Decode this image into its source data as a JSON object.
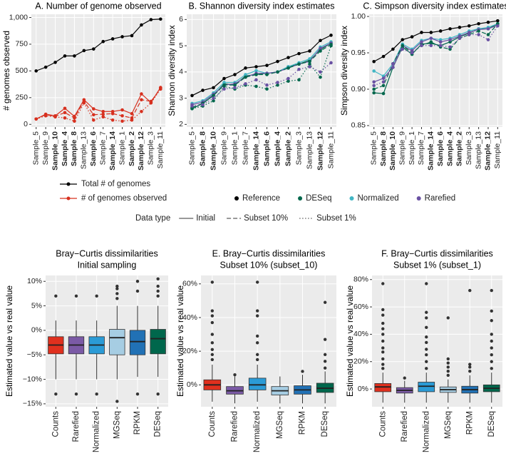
{
  "chart_data": [
    {
      "type": "line",
      "title": "A. Number of genome observed",
      "y_label": "# genomes observed",
      "categories": [
        "Sample_5",
        "Sample_9",
        "Sample_10",
        "Sample_4",
        "Sample_8",
        "Sample_13",
        "Sample_6",
        "Sample_7",
        "Sample_14",
        "Sample_1",
        "Sample_2",
        "Sample_12",
        "Sample_3",
        "Sample_11"
      ],
      "bold_labels": [
        false,
        false,
        true,
        true,
        true,
        false,
        true,
        false,
        true,
        false,
        true,
        true,
        false,
        false
      ],
      "ylim": [
        -25,
        1030
      ],
      "yticks": [
        0,
        250,
        500,
        750,
        {
          "value": 1000,
          "label": "1,000"
        }
      ],
      "grid": true,
      "points": true,
      "series": [
        {
          "color": "#000000",
          "dash": "solid",
          "values": [
            500,
            535,
            580,
            640,
            640,
            690,
            705,
            775,
            800,
            820,
            830,
            930,
            980,
            985
          ]
        },
        {
          "color": "#d7301f",
          "dash": "solid",
          "values": [
            50,
            95,
            80,
            150,
            75,
            230,
            145,
            120,
            120,
            135,
            100,
            285,
            205,
            345
          ]
        },
        {
          "color": "#d7301f",
          "dash": "dashed",
          "values": [
            50,
            90,
            75,
            110,
            60,
            215,
            90,
            95,
            100,
            80,
            60,
            230,
            215,
            335
          ]
        },
        {
          "color": "#d7301f",
          "dash": "dotted",
          "values": [
            50,
            80,
            70,
            60,
            30,
            200,
            40,
            70,
            40,
            30,
            40,
            120,
            200,
            330
          ]
        }
      ],
      "legend": [
        {
          "name": "Total # of genomes",
          "color": "#000000"
        },
        {
          "name": "# of genomes observed",
          "color": "#d7301f"
        }
      ]
    },
    {
      "type": "line",
      "title": "B. Shannon diversity index estimates",
      "y_label": "Shannon diversity index",
      "categories": [
        "Sample_5",
        "Sample_8",
        "Sample_10",
        "Sample_9",
        "Sample_1",
        "Sample_7",
        "Sample_14",
        "Sample_6",
        "Sample_4",
        "Sample_2",
        "Sample_3",
        "Sample_13",
        "Sample_12",
        "Sample_11"
      ],
      "bold_labels": [
        false,
        true,
        true,
        false,
        false,
        false,
        true,
        true,
        true,
        true,
        false,
        false,
        true,
        false
      ],
      "ylim": [
        1.9,
        6.2
      ],
      "yticks": [
        2,
        3,
        4,
        5,
        6
      ],
      "grid": true,
      "points": true,
      "series": [
        {
          "color": "#000000",
          "dash": "solid",
          "values": [
            3.1,
            3.3,
            3.4,
            3.75,
            3.9,
            4.15,
            4.2,
            4.25,
            4.4,
            4.55,
            4.7,
            4.8,
            5.2,
            5.4
          ]
        },
        {
          "color": "#00674c",
          "dash": "solid",
          "values": [
            2.6,
            2.8,
            3.1,
            3.55,
            3.5,
            3.85,
            3.9,
            3.95,
            4.0,
            4.2,
            4.3,
            4.45,
            4.85,
            5.1
          ]
        },
        {
          "color": "#41b6c4",
          "dash": "solid",
          "values": [
            2.8,
            2.9,
            3.2,
            3.6,
            3.6,
            3.9,
            4.05,
            3.95,
            4.0,
            4.2,
            4.35,
            4.5,
            4.95,
            5.15
          ]
        },
        {
          "color": "#6a51a3",
          "dash": "solid",
          "values": [
            2.75,
            2.85,
            3.15,
            3.5,
            3.55,
            3.8,
            3.95,
            3.95,
            4.0,
            4.15,
            4.3,
            4.4,
            4.9,
            5.1
          ]
        },
        {
          "color": "#00674c",
          "dash": "dashed",
          "values": [
            2.65,
            2.8,
            3.1,
            3.5,
            3.5,
            3.8,
            3.9,
            3.9,
            4.0,
            4.15,
            4.3,
            4.4,
            4.8,
            5.05
          ]
        },
        {
          "color": "#00674c",
          "dash": "dotted",
          "values": [
            2.6,
            2.7,
            2.9,
            3.45,
            3.35,
            3.5,
            3.45,
            3.35,
            3.5,
            3.65,
            3.7,
            4.3,
            3.8,
            5.0
          ]
        },
        {
          "color": "#6a51a3",
          "dash": "dotted",
          "values": [
            2.7,
            2.75,
            3.0,
            3.35,
            3.4,
            3.55,
            3.7,
            3.5,
            3.6,
            3.75,
            4.1,
            4.2,
            4.0,
            4.35
          ]
        }
      ],
      "legend": [
        {
          "name": "Reference",
          "color": "#000000"
        },
        {
          "name": "DESeq",
          "color": "#00674c"
        },
        {
          "name": "Normalized",
          "color": "#41b6c4"
        },
        {
          "name": "Rarefied",
          "color": "#6a51a3"
        }
      ],
      "linetype_legend": {
        "title": "Data type",
        "entries": [
          {
            "label": "Initial",
            "dash": "solid"
          },
          {
            "label": "Subset 10%",
            "dash": "dashed"
          },
          {
            "label": "Subset 1%",
            "dash": "dotted"
          }
        ]
      }
    },
    {
      "type": "line",
      "title": "C. Simpson diversity index estimates",
      "y_label": "Simpson diversity index",
      "categories": [
        "Sample_5",
        "Sample_8",
        "Sample_10",
        "Sample_9",
        "Sample_1",
        "Sample_7",
        "Sample_14",
        "Sample_6",
        "Sample_4",
        "Sample_2",
        "Sample_3",
        "Sample_13",
        "Sample_12",
        "Sample_11"
      ],
      "bold_labels": [
        false,
        true,
        true,
        false,
        false,
        false,
        true,
        true,
        true,
        true,
        false,
        false,
        true,
        false
      ],
      "ylim": [
        0.848,
        1.003
      ],
      "yticks": [
        0.85,
        {
          "value": 0.9,
          "label": "0.90"
        },
        0.95,
        {
          "value": 1,
          "label": "1.00"
        }
      ],
      "grid": true,
      "points": true,
      "series": [
        {
          "color": "#000000",
          "dash": "solid",
          "values": [
            0.938,
            0.945,
            0.955,
            0.968,
            0.972,
            0.978,
            0.978,
            0.98,
            0.983,
            0.985,
            0.987,
            0.99,
            0.992,
            0.994
          ]
        },
        {
          "color": "#00674c",
          "dash": "solid",
          "values": [
            0.895,
            0.894,
            0.93,
            0.958,
            0.948,
            0.962,
            0.963,
            0.96,
            0.965,
            0.972,
            0.977,
            0.983,
            0.983,
            0.99
          ]
        },
        {
          "color": "#41b6c4",
          "dash": "solid",
          "values": [
            0.925,
            0.918,
            0.935,
            0.962,
            0.955,
            0.967,
            0.97,
            0.968,
            0.97,
            0.975,
            0.98,
            0.983,
            0.985,
            0.99
          ]
        },
        {
          "color": "#6a51a3",
          "dash": "solid",
          "values": [
            0.91,
            0.915,
            0.93,
            0.96,
            0.953,
            0.965,
            0.97,
            0.965,
            0.968,
            0.973,
            0.978,
            0.982,
            0.983,
            0.988
          ]
        },
        {
          "color": "#00674c",
          "dash": "dashed",
          "values": [
            0.9,
            0.905,
            0.935,
            0.96,
            0.95,
            0.96,
            0.965,
            0.958,
            0.955,
            0.97,
            0.975,
            0.98,
            0.975,
            0.99
          ]
        },
        {
          "color": "#6a51a3",
          "dash": "dotted",
          "values": [
            0.905,
            0.91,
            0.935,
            0.955,
            0.95,
            0.96,
            0.96,
            0.96,
            0.958,
            0.97,
            0.975,
            0.975,
            0.968,
            0.987
          ]
        }
      ]
    },
    {
      "type": "box",
      "title": "Bray−Curtis dissimilarities",
      "subtitle": "Initial sampling",
      "y_label": "Estimated value vs real value",
      "categories": [
        "Counts",
        "Rarefied",
        "Normalized",
        "MGSeq",
        "RPKM",
        "DESeq"
      ],
      "colors": [
        "#e0301e",
        "#7b5aa6",
        "#2b9bd6",
        "#a6cde3",
        "#2171b5",
        "#00674c"
      ],
      "ylim": [
        -15.6,
        11.2
      ],
      "yticks": [
        {
          "value": -15,
          "label": "−15%"
        },
        {
          "value": -10,
          "label": "−10%"
        },
        {
          "value": -5,
          "label": "−5%"
        },
        {
          "value": 0,
          "label": "0%"
        },
        {
          "value": 5,
          "label": "5%"
        },
        {
          "value": 10,
          "label": "10%"
        }
      ],
      "grid": true,
      "boxes": [
        {
          "whislo": -10,
          "q1": -4.8,
          "med": -3,
          "q3": -1.3,
          "whishi": 2,
          "fliers": [
            7,
            -13
          ]
        },
        {
          "whislo": -10,
          "q1": -4.8,
          "med": -3,
          "q3": -1.3,
          "whishi": 2,
          "fliers": [
            7,
            -13
          ]
        },
        {
          "whislo": -10,
          "q1": -4.8,
          "med": -3,
          "q3": -1.3,
          "whishi": 2,
          "fliers": [
            7,
            -13
          ]
        },
        {
          "whislo": -10,
          "q1": -5,
          "med": -1.5,
          "q3": 0.2,
          "whishi": 5,
          "fliers": [
            6.5,
            7.5,
            8.5,
            9,
            -14.5
          ]
        },
        {
          "whislo": -9.5,
          "q1": -5,
          "med": -2.3,
          "q3": 0,
          "whishi": 5,
          "fliers": [
            8,
            10,
            -13
          ]
        },
        {
          "whislo": -9.5,
          "q1": -4.8,
          "med": -1.7,
          "q3": 0.2,
          "whishi": 5,
          "fliers": [
            7,
            8,
            9,
            10.5,
            -13
          ]
        }
      ]
    },
    {
      "type": "box",
      "title": "E. Bray−Curtis dissimilarities",
      "subtitle": "Subset 10% (subset_10)",
      "y_label": "Estimated value vs real value",
      "categories": [
        "Counts",
        "Rarefied",
        "Normalized",
        "MGSeq",
        "RPKM",
        "DESeq"
      ],
      "colors": [
        "#e0301e",
        "#7b5aa6",
        "#2b9bd6",
        "#a6cde3",
        "#2171b5",
        "#00674c"
      ],
      "ylim": [
        -13,
        65
      ],
      "yticks": [
        {
          "value": 0,
          "label": "0%"
        },
        {
          "value": 20,
          "label": "20%"
        },
        {
          "value": 40,
          "label": "40%"
        },
        {
          "value": 60,
          "label": "60%"
        }
      ],
      "grid": true,
      "boxes": [
        {
          "whislo": -10,
          "q1": -3,
          "med": 0,
          "q3": 3,
          "whishi": 12,
          "fliers": [
            15,
            18,
            21,
            25,
            30,
            37,
            41,
            44,
            61
          ]
        },
        {
          "whislo": -11,
          "q1": -5.5,
          "med": -3.5,
          "q3": -1,
          "whishi": 5,
          "fliers": [
            6
          ]
        },
        {
          "whislo": -10,
          "q1": -3,
          "med": 0,
          "q3": 4,
          "whishi": 12,
          "fliers": [
            15,
            18,
            25,
            29,
            41,
            44,
            61
          ]
        },
        {
          "whislo": -11,
          "q1": -6,
          "med": -3.5,
          "q3": -1,
          "whishi": 5,
          "fliers": []
        },
        {
          "whislo": -11,
          "q1": -5.5,
          "med": -3,
          "q3": -0.5,
          "whishi": 6,
          "fliers": [
            8
          ]
        },
        {
          "whislo": -11,
          "q1": -4.5,
          "med": -2,
          "q3": 1,
          "whishi": 8,
          "fliers": [
            10,
            14,
            18,
            27,
            49
          ]
        }
      ]
    },
    {
      "type": "box",
      "title": "F. Bray−Curtis dissimilarities",
      "subtitle": "Subset 1% (subset_1)",
      "y_label": "Estimated value vs real value",
      "categories": [
        "Counts",
        "Rarefied",
        "Normalized",
        "MGSeq",
        "RPKM",
        "DESeq"
      ],
      "colors": [
        "#e0301e",
        "#7b5aa6",
        "#2b9bd6",
        "#a6cde3",
        "#2171b5",
        "#00674c"
      ],
      "ylim": [
        -13,
        83
      ],
      "yticks": [
        {
          "value": 0,
          "label": "0%"
        },
        {
          "value": 20,
          "label": "20%"
        },
        {
          "value": 40,
          "label": "40%"
        },
        {
          "value": 60,
          "label": "60%"
        },
        {
          "value": 80,
          "label": "80%"
        }
      ],
      "grid": true,
      "boxes": [
        {
          "whislo": -10,
          "q1": -2,
          "med": 1.5,
          "q3": 4,
          "whishi": 12,
          "fliers": [
            15,
            18,
            22,
            27,
            30,
            35,
            40,
            44,
            48,
            54,
            58,
            77
          ]
        },
        {
          "whislo": -10,
          "q1": -3,
          "med": -1,
          "q3": 1,
          "whishi": 6,
          "fliers": [
            8
          ]
        },
        {
          "whislo": -10,
          "q1": -2,
          "med": 2,
          "q3": 5,
          "whishi": 12,
          "fliers": [
            15,
            20,
            25,
            29,
            34,
            38,
            45,
            52,
            56,
            77
          ]
        },
        {
          "whislo": -10,
          "q1": -2.5,
          "med": -0.5,
          "q3": 1.5,
          "whishi": 7,
          "fliers": [
            10,
            13,
            16,
            19,
            22,
            52
          ]
        },
        {
          "whislo": -10,
          "q1": -3,
          "med": -0.5,
          "q3": 2,
          "whishi": 10,
          "fliers": [
            13,
            16,
            18,
            72
          ]
        },
        {
          "whislo": -10,
          "q1": -2,
          "med": 0.5,
          "q3": 3,
          "whishi": 12,
          "fliers": [
            15,
            20,
            25,
            30,
            35,
            40,
            50,
            57,
            72
          ]
        }
      ]
    }
  ]
}
